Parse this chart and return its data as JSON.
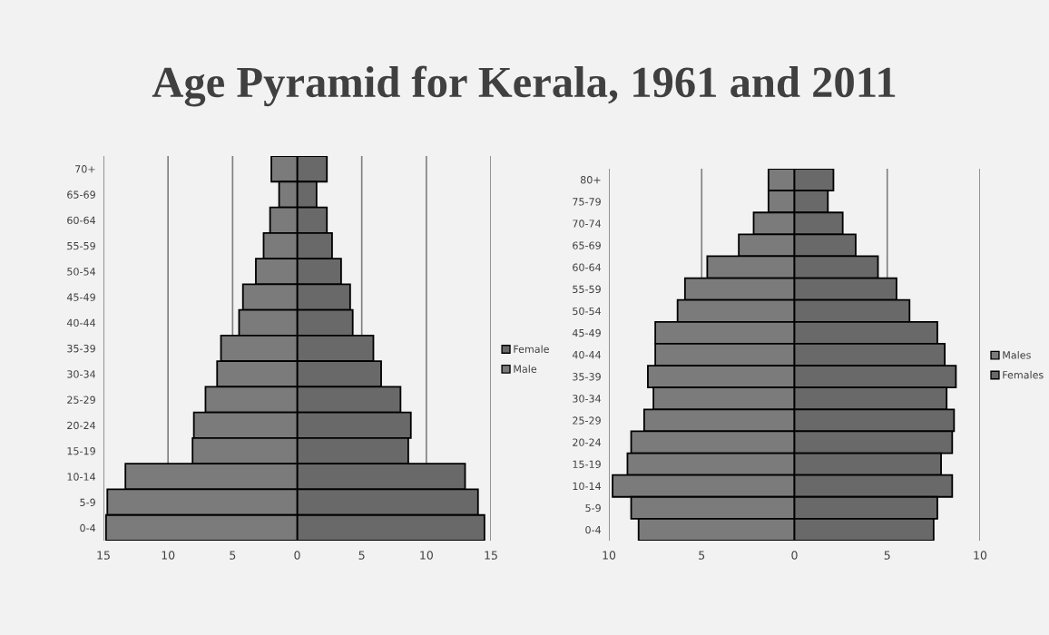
{
  "chart_data": [
    {
      "type": "bar",
      "title": "Age Pyramid for Kerala, 1961 and 2011",
      "orientation": "horizontal",
      "stacked": true,
      "categories": [
        "70+",
        "65-69",
        "60-64",
        "55-59",
        "50-54",
        "45-49",
        "40-44",
        "35-39",
        "30-34",
        "25-29",
        "20-24",
        "15-19",
        "10-14",
        "5-9",
        "0-4"
      ],
      "series": [
        {
          "name": "Female",
          "color": "#696969",
          "values": [
            2.3,
            1.5,
            2.3,
            2.7,
            3.4,
            4.1,
            4.3,
            5.9,
            6.5,
            8.0,
            8.8,
            8.6,
            13.0,
            14.0,
            14.5
          ]
        },
        {
          "name": "Male",
          "color": "#7b7b7b",
          "values": [
            -2.0,
            -1.4,
            -2.1,
            -2.6,
            -3.2,
            -4.2,
            -4.5,
            -5.9,
            -6.2,
            -7.1,
            -8.0,
            -8.1,
            -13.3,
            -14.7,
            -14.8
          ]
        }
      ],
      "xlim": [
        -15,
        15
      ],
      "xticks": [
        {
          "value": -15,
          "label": "15"
        },
        {
          "value": -10,
          "label": "10"
        },
        {
          "value": -5,
          "label": "5"
        },
        0,
        5,
        10,
        15
      ],
      "grid": "x",
      "legend": "right"
    },
    {
      "type": "bar",
      "orientation": "horizontal",
      "stacked": true,
      "categories": [
        "80+",
        "75-79",
        "70-74",
        "65-69",
        "60-64",
        "55-59",
        "50-54",
        "45-49",
        "40-44",
        "35-39",
        "30-34",
        "25-29",
        "20-24",
        "15-19",
        "10-14",
        "5-9",
        "0-4"
      ],
      "series": [
        {
          "name": "Males",
          "color": "#7b7b7b",
          "values": [
            -1.4,
            -1.4,
            -2.2,
            -3.0,
            -4.7,
            -5.9,
            -6.3,
            -7.5,
            -7.5,
            -7.9,
            -7.6,
            -8.1,
            -8.8,
            -9.0,
            -9.8,
            -8.8,
            -8.4
          ]
        },
        {
          "name": "Females",
          "color": "#696969",
          "values": [
            2.1,
            1.8,
            2.6,
            3.3,
            4.5,
            5.5,
            6.2,
            7.7,
            8.1,
            8.7,
            8.2,
            8.6,
            8.5,
            7.9,
            8.5,
            7.7,
            7.5
          ]
        }
      ],
      "xlim": [
        -10,
        10
      ],
      "xticks": [
        {
          "value": -10,
          "label": "10"
        },
        {
          "value": -5,
          "label": "5"
        },
        0,
        5,
        10
      ],
      "grid": "x",
      "legend": "right"
    }
  ]
}
